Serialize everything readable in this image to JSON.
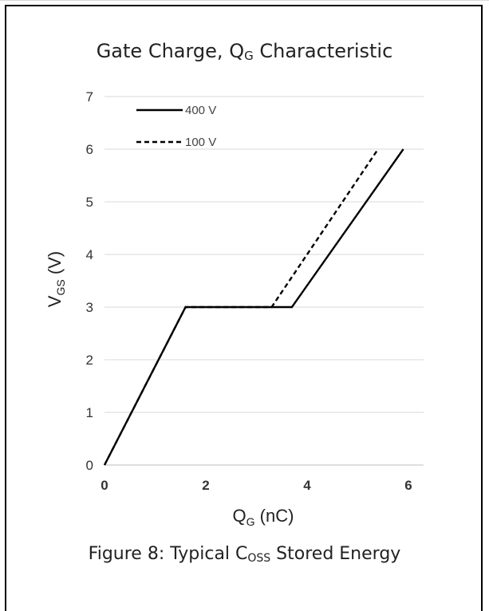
{
  "chart_data": {
    "type": "line",
    "title": "Gate Charge, Q",
    "title_sub": "G",
    "title_rest": " Characteristic",
    "xlabel": "Q",
    "xlabel_sub": "G",
    "xlabel_rest": " (nC)",
    "ylabel": "V",
    "ylabel_sub": "GS",
    "ylabel_rest": " (V)",
    "xlim": [
      0,
      6.3
    ],
    "ylim": [
      0,
      7
    ],
    "x_ticks": [
      "0",
      "2",
      "4",
      "6"
    ],
    "y_ticks": [
      "0",
      "1",
      "2",
      "3",
      "4",
      "5",
      "6",
      "7"
    ],
    "grid": "horizontal",
    "legend_position": "top-left",
    "series": [
      {
        "name": "400 V",
        "style": "solid",
        "color": "#000000",
        "x": [
          0,
          1.6,
          3.7,
          5.9
        ],
        "y": [
          0,
          3,
          3,
          6
        ]
      },
      {
        "name": "100 V",
        "style": "dashed",
        "color": "#000000",
        "x": [
          0,
          1.6,
          3.3,
          5.4
        ],
        "y": [
          0,
          3,
          3,
          6
        ]
      }
    ]
  },
  "caption": {
    "text": "Figure 8: Typical C",
    "sub": "OSS",
    "rest": " Stored Energy"
  }
}
